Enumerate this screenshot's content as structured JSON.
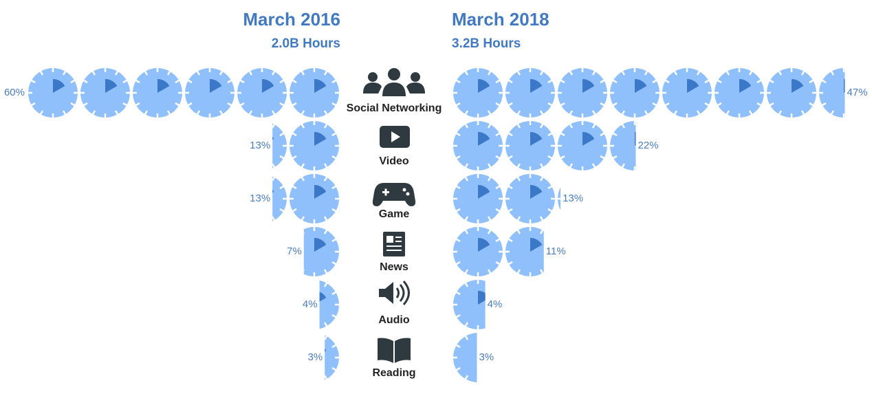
{
  "chart_data": {
    "type": "pictogram",
    "categories": [
      "Social Networking",
      "Video",
      "Game",
      "News",
      "Audio",
      "Reading"
    ],
    "series": [
      {
        "name": "March 2016",
        "total": {
          "value": 2.0,
          "label": "2.0B Hours"
        },
        "color": "#8fc0fb",
        "values": [
          60,
          13,
          13,
          7,
          4,
          3
        ],
        "value_labels": [
          "60%",
          "13%",
          "13%",
          "7%",
          "4%",
          "3%"
        ]
      },
      {
        "name": "March 2018",
        "total": {
          "value": 3.2,
          "label": "3.2B Hours"
        },
        "color": "#8fc0fb",
        "values": [
          47,
          22,
          13,
          11,
          4,
          3
        ],
        "value_labels": [
          "47%",
          "22%",
          "13%",
          "11%",
          "4%",
          "3%"
        ]
      }
    ]
  }
}
